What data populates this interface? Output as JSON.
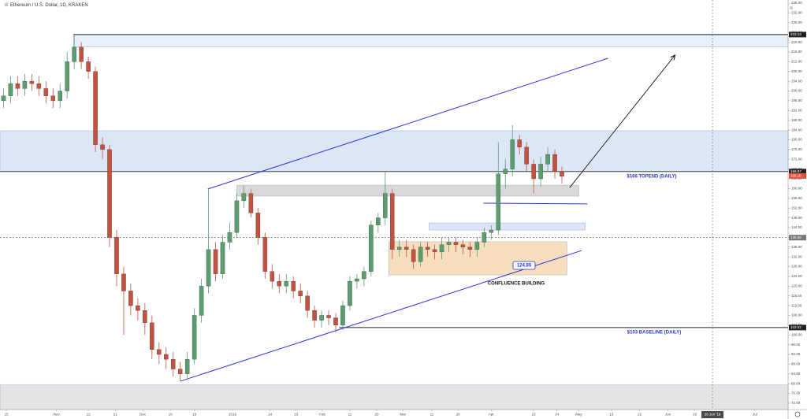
{
  "chart_data": {
    "type": "candlestick",
    "title": "Ethereum / U.S. Dollar, 1D, KRAKEN",
    "up_color": "#5a9e6f",
    "down_color": "#c4523f",
    "xlim": [
      -0.5,
      111
    ],
    "ylim": [
      69.4,
      237.3
    ],
    "yticks": [
      {
        "value": 236,
        "label": "236.00"
      },
      {
        "value": 232,
        "label": "232.00"
      },
      {
        "value": 228,
        "label": "228.00"
      },
      {
        "value": 224,
        "label": "224.00"
      },
      {
        "value": 220,
        "label": "220.00"
      },
      {
        "value": 216,
        "label": "216.00"
      },
      {
        "value": 212,
        "label": "212.00"
      },
      {
        "value": 208,
        "label": "208.00"
      },
      {
        "value": 204,
        "label": "204.00"
      },
      {
        "value": 200,
        "label": "200.00"
      },
      {
        "value": 196,
        "label": "196.00"
      },
      {
        "value": 192,
        "label": "192.00"
      },
      {
        "value": 188,
        "label": "188.00"
      },
      {
        "value": 184,
        "label": "184.00"
      },
      {
        "value": 180,
        "label": "180.00"
      },
      {
        "value": 176,
        "label": "176.00"
      },
      {
        "value": 172,
        "label": "172.00"
      },
      {
        "value": 168,
        "label": "168.00"
      },
      {
        "value": 164,
        "label": "164.00"
      },
      {
        "value": 160,
        "label": "160.00"
      },
      {
        "value": 156,
        "label": "156.00"
      },
      {
        "value": 152,
        "label": "152.00"
      },
      {
        "value": 148,
        "label": "148.00"
      },
      {
        "value": 144,
        "label": "144.00"
      },
      {
        "value": 140,
        "label": "140.00"
      },
      {
        "value": 136,
        "label": "136.00"
      },
      {
        "value": 132,
        "label": "132.00"
      },
      {
        "value": 128,
        "label": "128.00"
      },
      {
        "value": 124,
        "label": "124.00"
      },
      {
        "value": 120,
        "label": "120.00"
      },
      {
        "value": 116,
        "label": "116.00"
      },
      {
        "value": 112,
        "label": "112.00"
      },
      {
        "value": 108,
        "label": "108.00"
      },
      {
        "value": 104,
        "label": "104.00"
      },
      {
        "value": 100,
        "label": "100.00"
      },
      {
        "value": 96,
        "label": "96.00"
      },
      {
        "value": 92,
        "label": "92.00"
      },
      {
        "value": 88,
        "label": "88.00"
      },
      {
        "value": 84,
        "label": "84.00"
      },
      {
        "value": 80,
        "label": "80.00"
      },
      {
        "value": 76,
        "label": "76.00"
      },
      {
        "value": 72,
        "label": "72.00"
      }
    ],
    "xticks": [
      {
        "value": 0.4,
        "label": "15"
      },
      {
        "value": 7.5,
        "label": "Nov"
      },
      {
        "value": 12,
        "label": "12"
      },
      {
        "value": 15.8,
        "label": "21"
      },
      {
        "value": 19.7,
        "label": "Dec"
      },
      {
        "value": 23.6,
        "label": "10"
      },
      {
        "value": 27,
        "label": "19"
      },
      {
        "value": 32.4,
        "label": "2019"
      },
      {
        "value": 37.7,
        "label": "14"
      },
      {
        "value": 41.4,
        "label": "23"
      },
      {
        "value": 45.1,
        "label": "Feb"
      },
      {
        "value": 49,
        "label": "11"
      },
      {
        "value": 52.8,
        "label": "20"
      },
      {
        "value": 56.5,
        "label": "Mar"
      },
      {
        "value": 60.6,
        "label": "11"
      },
      {
        "value": 64.3,
        "label": "20"
      },
      {
        "value": 69,
        "label": "Apr"
      },
      {
        "value": 75,
        "label": "15"
      },
      {
        "value": 78.3,
        "label": "24"
      },
      {
        "value": 81.4,
        "label": "May"
      },
      {
        "value": 86,
        "label": "13"
      },
      {
        "value": 90,
        "label": "22"
      },
      {
        "value": 94,
        "label": "Jun"
      },
      {
        "value": 97.8,
        "label": "10"
      },
      {
        "value": 106.3,
        "label": "Jul"
      }
    ],
    "cursor": {
      "value": 100.3,
      "label": "26 Jun '19"
    },
    "open": [
      196,
      198,
      203,
      201,
      204,
      203,
      201,
      198,
      196,
      200,
      212,
      218,
      212,
      208,
      178,
      176,
      140,
      125,
      118,
      112,
      110,
      105,
      94,
      92,
      90,
      86,
      84,
      90,
      108,
      120,
      135,
      125,
      138,
      142,
      155,
      158,
      150,
      140,
      126,
      122,
      120,
      122,
      118,
      116,
      110,
      106,
      108,
      107,
      104,
      112,
      122,
      123,
      126,
      145,
      148,
      158,
      135,
      136,
      135,
      130,
      136,
      135,
      134,
      137,
      138,
      137,
      136,
      135,
      138,
      142,
      143,
      166,
      168,
      180,
      177,
      170,
      164,
      170,
      174,
      167
    ],
    "high": [
      201,
      206,
      206,
      207,
      207,
      206,
      204,
      201,
      203,
      216,
      223,
      220,
      214,
      210,
      181,
      178,
      143,
      128,
      121,
      115,
      113,
      108,
      97,
      95,
      93,
      89,
      93,
      111,
      123,
      160,
      138,
      141,
      146,
      158,
      161,
      160,
      152,
      142,
      129,
      125,
      125,
      124,
      121,
      118,
      112,
      110,
      110,
      109,
      114,
      124,
      125,
      128,
      147,
      150,
      167,
      160,
      139,
      139,
      137,
      138,
      138,
      137,
      140,
      140,
      140,
      139,
      138,
      140,
      144,
      145,
      179,
      172,
      186,
      182,
      179,
      172,
      173,
      177,
      176,
      169
    ],
    "low": [
      193,
      195,
      198,
      198,
      200,
      198,
      195,
      193,
      193,
      197,
      209,
      209,
      205,
      175,
      172,
      136,
      120,
      100,
      108,
      106,
      100,
      90,
      88,
      86,
      83,
      81,
      82,
      88,
      105,
      117,
      122,
      123,
      135,
      140,
      152,
      148,
      137,
      123,
      119,
      117,
      117,
      115,
      113,
      107,
      103,
      103,
      104,
      101,
      102,
      110,
      119,
      120,
      124,
      142,
      145,
      131,
      132,
      132,
      127,
      128,
      132,
      131,
      131,
      134,
      134,
      133,
      132,
      132,
      136,
      139,
      141,
      160,
      165,
      174,
      167,
      158,
      161,
      167,
      164,
      162
    ],
    "close": [
      198,
      203,
      201,
      204,
      203,
      201,
      198,
      196,
      200,
      212,
      218,
      212,
      208,
      178,
      176,
      140,
      125,
      118,
      112,
      110,
      105,
      94,
      92,
      90,
      86,
      84,
      90,
      108,
      120,
      135,
      125,
      138,
      142,
      155,
      158,
      150,
      140,
      126,
      122,
      120,
      122,
      118,
      116,
      110,
      106,
      108,
      107,
      104,
      112,
      122,
      123,
      126,
      145,
      148,
      158,
      135,
      136,
      135,
      130,
      136,
      135,
      134,
      137,
      138,
      137,
      136,
      135,
      138,
      142,
      143,
      166,
      168,
      180,
      177,
      170,
      164,
      170,
      174,
      167,
      165
    ],
    "zones": [
      {
        "x": [
          9.9,
          111
        ],
        "y": [
          218,
          223.13
        ],
        "color": "#eaf0fb"
      },
      {
        "x": [
          -0.5,
          111
        ],
        "y": [
          166.97,
          183.7
        ],
        "color": "#dde6f7"
      },
      {
        "x": [
          33,
          81.4
        ],
        "y": [
          156.9,
          161.4
        ],
        "color": "#d9d9d9"
      },
      {
        "x": [
          60.2,
          82.3
        ],
        "y": [
          143,
          145.9
        ],
        "color": "#dde6f7"
      },
      {
        "x": [
          54.5,
          79.7
        ],
        "y": [
          124.6,
          138.2
        ],
        "color": "#f7dfbd"
      },
      {
        "x": [
          -0.5,
          111
        ],
        "y": [
          69.4,
          79.5
        ],
        "color": "#e4e4e4"
      }
    ],
    "price_lines": [
      {
        "value": 223.13,
        "from": 9.9,
        "style": "solid"
      },
      {
        "value": 166.97,
        "from": -0.5,
        "style": "solid"
      },
      {
        "value": 139.88,
        "from": -0.5,
        "style": "dashed"
      },
      {
        "value": 103.02,
        "from": 47.5,
        "style": "solid"
      }
    ],
    "current_price": 165.18,
    "current_color": "#e4513a",
    "trendlines": [
      {
        "x": [
          28.9,
          85.5
        ],
        "y": [
          159.8,
          213.4
        ],
        "color": "#2636d8"
      },
      {
        "x": [
          25,
          81.8
        ],
        "y": [
          81,
          134.6
        ],
        "color": "#2636d8"
      },
      {
        "x": [
          67.9,
          82.6
        ],
        "y": [
          154,
          153.7
        ],
        "color": "#2636d8"
      }
    ],
    "arrow": {
      "x": [
        80.1,
        95
      ],
      "y": [
        160.4,
        214.7
      ],
      "color": "#111111"
    },
    "price_tag": 124.85,
    "annotations": [
      "$166 TOPEND (DAILY)",
      "$103 BASELINE (DAILY)",
      "CONFLUENCE BUILDING"
    ]
  }
}
